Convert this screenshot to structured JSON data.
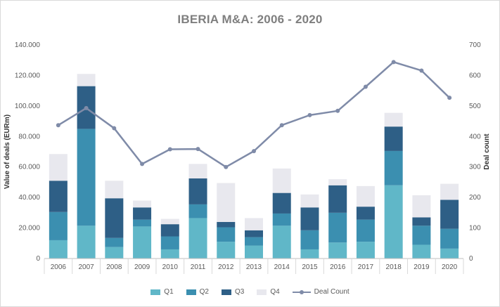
{
  "chart_data": {
    "type": "bar",
    "subtype": "stacked-bar-with-line",
    "title": "IBERIA M&A: 2006 - 2020",
    "ylabel": "Value of deals (EURm)",
    "y2label": "Deal count",
    "ylim": [
      0,
      140000
    ],
    "y2lim": [
      0,
      700
    ],
    "yticks": [
      "0",
      "20.000",
      "40.000",
      "60.000",
      "80.000",
      "100.000",
      "120.000",
      "140.000"
    ],
    "y2ticks": [
      "0",
      "100",
      "200",
      "300",
      "400",
      "500",
      "600",
      "700"
    ],
    "categories": [
      "2006",
      "2007",
      "2008",
      "2009",
      "2010",
      "2011",
      "2012",
      "2013",
      "2014",
      "2015",
      "2016",
      "2017",
      "2018",
      "2019",
      "2020"
    ],
    "series": [
      {
        "name": "Q1",
        "color": "#60b7c8",
        "values": [
          12000,
          21500,
          7500,
          21000,
          6000,
          26500,
          11000,
          8500,
          21500,
          6000,
          10500,
          11000,
          48000,
          9000,
          6500
        ]
      },
      {
        "name": "Q2",
        "color": "#3b8fb0",
        "values": [
          18500,
          63500,
          6000,
          4500,
          8500,
          9000,
          9500,
          5500,
          8000,
          12500,
          19500,
          14500,
          22500,
          12500,
          13000
        ]
      },
      {
        "name": "Q3",
        "color": "#2e5f86",
        "values": [
          20500,
          28000,
          26000,
          8000,
          8000,
          17000,
          3500,
          4500,
          13500,
          15000,
          18000,
          8500,
          16000,
          5500,
          19000
        ]
      },
      {
        "name": "Q4",
        "color": "#e8e8ee",
        "values": [
          17500,
          8000,
          11500,
          4500,
          3500,
          9500,
          25500,
          8000,
          16000,
          8500,
          4000,
          13500,
          9000,
          14500,
          10500
        ]
      }
    ],
    "line_series": {
      "name": "Deal Count",
      "color": "#7f8ba8",
      "values": [
        437,
        493,
        427,
        310,
        358,
        359,
        300,
        352,
        437,
        470,
        484,
        563,
        644,
        616,
        527
      ]
    },
    "legend": [
      "Q1",
      "Q2",
      "Q3",
      "Q4",
      "Deal Count"
    ],
    "legend_position": "bottom",
    "grid": false
  }
}
